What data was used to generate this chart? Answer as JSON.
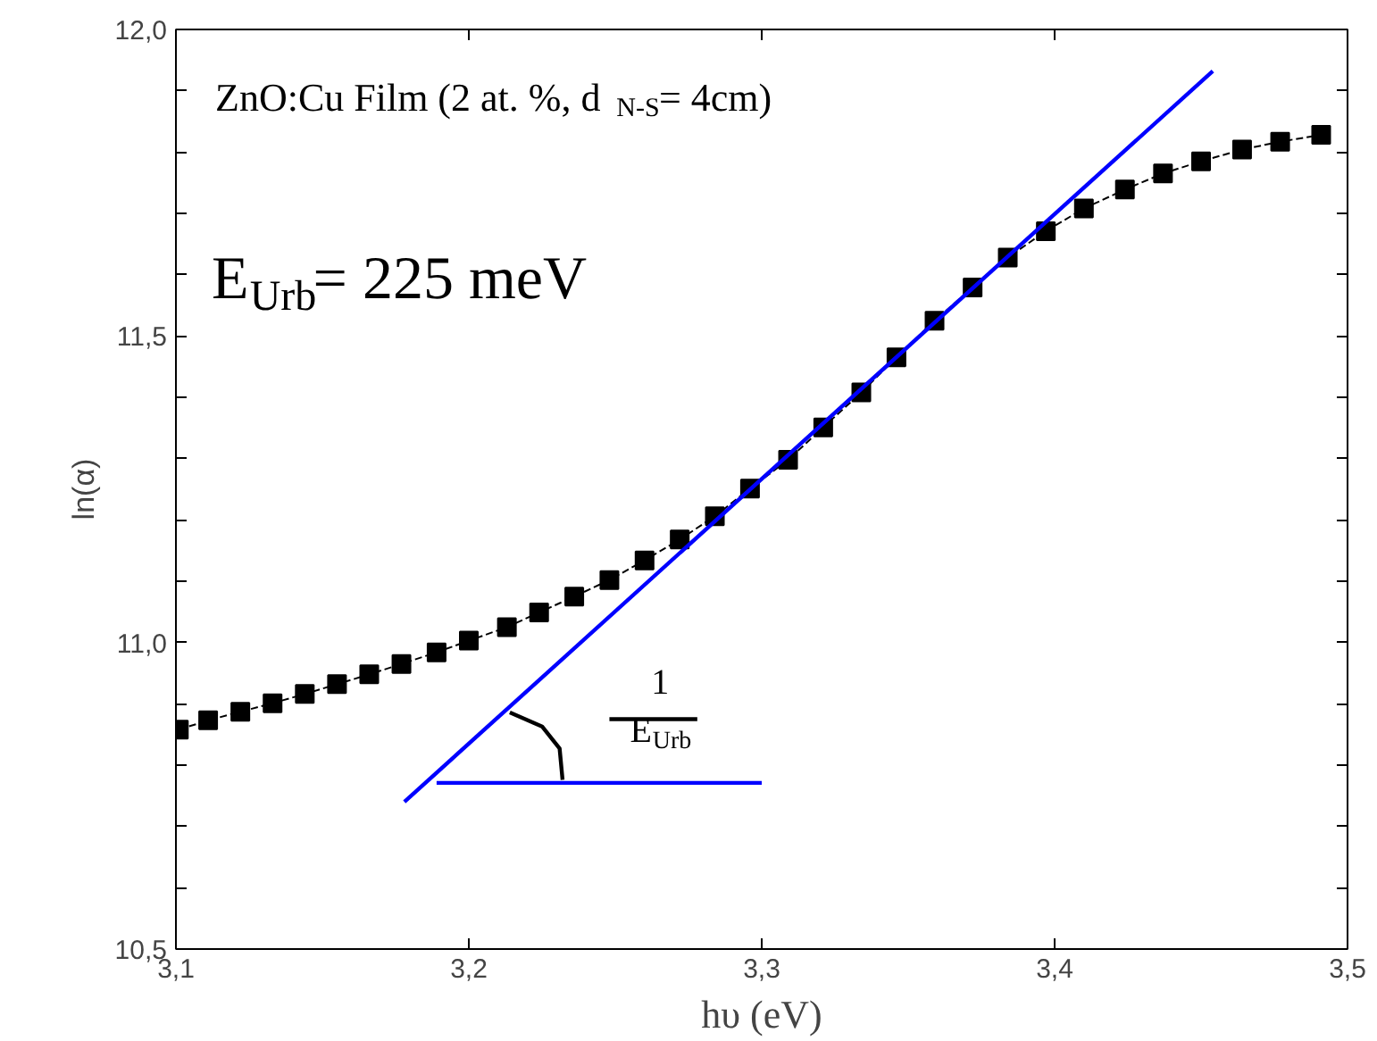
{
  "chart_data": {
    "type": "line",
    "xlabel": "hυ (eV)",
    "ylabel": "ln(α)",
    "xlim": [
      3.1,
      3.5
    ],
    "ylim": [
      10.5,
      12.0
    ],
    "xticks": [
      {
        "value": 3.1,
        "label": "3,1"
      },
      {
        "value": 3.2,
        "label": "3,2"
      },
      {
        "value": 3.3,
        "label": "3,3"
      },
      {
        "value": 3.4,
        "label": "3,4"
      },
      {
        "value": 3.5,
        "label": "3,5"
      }
    ],
    "yticks": [
      {
        "value": 10.5,
        "label": "10,5"
      },
      {
        "value": 10.6,
        "label": null
      },
      {
        "value": 10.7,
        "label": null
      },
      {
        "value": 10.8,
        "label": null
      },
      {
        "value": 10.9,
        "label": null
      },
      {
        "value": 11.0,
        "label": "11,0"
      },
      {
        "value": 11.1,
        "label": null
      },
      {
        "value": 11.2,
        "label": null
      },
      {
        "value": 11.3,
        "label": null
      },
      {
        "value": 11.4,
        "label": null
      },
      {
        "value": 11.5,
        "label": "11,5"
      },
      {
        "value": 11.6,
        "label": null
      },
      {
        "value": 11.7,
        "label": null
      },
      {
        "value": 11.8,
        "label": null
      },
      {
        "value": 11.9,
        "label": null
      },
      {
        "value": 12.0,
        "label": "12,0"
      }
    ],
    "grid": false,
    "series": [
      {
        "color": "#000000",
        "marker": "square",
        "line_style": "dashed",
        "x": [
          3.101,
          3.111,
          3.122,
          3.133,
          3.144,
          3.155,
          3.166,
          3.177,
          3.189,
          3.2,
          3.213,
          3.224,
          3.236,
          3.248,
          3.26,
          3.272,
          3.284,
          3.296,
          3.309,
          3.321,
          3.334,
          3.346,
          3.359,
          3.372,
          3.384,
          3.397,
          3.41,
          3.424,
          3.437,
          3.45,
          3.464,
          3.477,
          3.491
        ],
        "values": [
          10.858,
          10.873,
          10.887,
          10.901,
          10.916,
          10.932,
          10.948,
          10.965,
          10.984,
          11.003,
          11.025,
          11.049,
          11.075,
          11.102,
          11.134,
          11.168,
          11.206,
          11.251,
          11.298,
          11.351,
          11.408,
          11.465,
          11.525,
          11.579,
          11.628,
          11.671,
          11.708,
          11.739,
          11.765,
          11.785,
          11.804,
          11.817,
          11.828
        ]
      },
      {
        "color": "#0000ff",
        "marker": "none",
        "line_style": "solid",
        "x": [
          3.178,
          3.454
        ],
        "values": [
          10.74,
          11.932
        ]
      },
      {
        "color": "#0000ff",
        "marker": "none",
        "line_style": "solid",
        "x": [
          3.189,
          3.3
        ],
        "values": [
          10.771,
          10.771
        ]
      },
      {
        "color": "#000000",
        "marker": "none",
        "line_style": "solid",
        "x": [
          3.214,
          3.225,
          3.231,
          3.232
        ],
        "values": [
          10.886,
          10.863,
          10.827,
          10.776
        ]
      },
      {
        "color": "#000000",
        "marker": "none",
        "line_style": "solid",
        "x": [
          3.248,
          3.278
        ],
        "values": [
          10.875,
          10.875
        ]
      }
    ],
    "annotations": [
      "ZnO:Cu Film  (2 at. %, d$_{N-S}$= 4cm)",
      "E$_{Urb}$= 225 meV",
      "1",
      "E$_{Urb}$"
    ]
  }
}
